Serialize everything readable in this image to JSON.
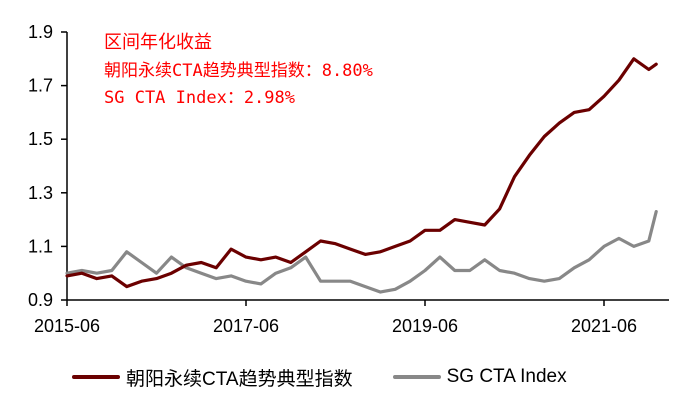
{
  "chart_data": {
    "type": "line",
    "title": "",
    "xlabel": "",
    "ylabel": "",
    "ylim": [
      0.9,
      1.9
    ],
    "yticks": [
      "0.9",
      "1.1",
      "1.3",
      "1.5",
      "1.7",
      "1.9"
    ],
    "xticks": [
      "2015-06",
      "2017-06",
      "2019-06",
      "2021-06"
    ],
    "xrange": [
      "2015-06",
      "2022-01"
    ],
    "grid": false,
    "legend_position": "bottom",
    "annotations": {
      "title": "区间年化收益",
      "line1": "朝阳永续CTA趋势典型指数：8.80%",
      "line2": "SG CTA Index：2.98%"
    },
    "x": [
      "2015-06",
      "2015-08",
      "2015-10",
      "2015-12",
      "2016-02",
      "2016-04",
      "2016-06",
      "2016-08",
      "2016-10",
      "2016-12",
      "2017-02",
      "2017-04",
      "2017-06",
      "2017-08",
      "2017-10",
      "2017-12",
      "2018-02",
      "2018-04",
      "2018-06",
      "2018-08",
      "2018-10",
      "2018-12",
      "2019-02",
      "2019-04",
      "2019-06",
      "2019-08",
      "2019-10",
      "2019-12",
      "2020-02",
      "2020-04",
      "2020-06",
      "2020-08",
      "2020-10",
      "2020-12",
      "2021-02",
      "2021-04",
      "2021-06",
      "2021-08",
      "2021-10",
      "2021-12",
      "2022-01"
    ],
    "series": [
      {
        "name": "朝阳永续CTA趋势典型指数",
        "color": "#6b0000",
        "values": [
          0.99,
          1.0,
          0.98,
          0.99,
          0.95,
          0.97,
          0.98,
          1.0,
          1.03,
          1.04,
          1.02,
          1.09,
          1.06,
          1.05,
          1.06,
          1.04,
          1.08,
          1.12,
          1.11,
          1.09,
          1.07,
          1.08,
          1.1,
          1.12,
          1.16,
          1.16,
          1.2,
          1.19,
          1.18,
          1.24,
          1.36,
          1.44,
          1.51,
          1.56,
          1.6,
          1.61,
          1.66,
          1.72,
          1.8,
          1.76,
          1.78
        ]
      },
      {
        "name": "SG CTA Index",
        "color": "#888888",
        "values": [
          1.0,
          1.01,
          1.0,
          1.01,
          1.08,
          1.04,
          1.0,
          1.06,
          1.02,
          1.0,
          0.98,
          0.99,
          0.97,
          0.96,
          1.0,
          1.02,
          1.06,
          0.97,
          0.97,
          0.97,
          0.95,
          0.93,
          0.94,
          0.97,
          1.01,
          1.06,
          1.01,
          1.01,
          1.05,
          1.01,
          1.0,
          0.98,
          0.97,
          0.98,
          1.02,
          1.05,
          1.1,
          1.13,
          1.1,
          1.12,
          1.23
        ]
      }
    ]
  },
  "legend": {
    "items": [
      {
        "label": "朝阳永续CTA趋势典型指数",
        "color": "#6b0000"
      },
      {
        "label": "SG CTA Index",
        "color": "#888888"
      }
    ]
  }
}
